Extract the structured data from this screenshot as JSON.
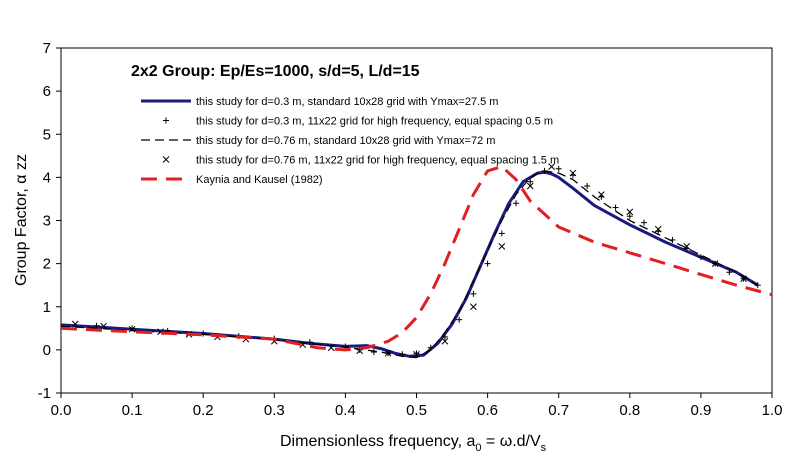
{
  "chart_data": {
    "type": "line",
    "title": "2x2 Group: Ep/Es=1000, s/d=5, L/d=15",
    "xlabel": {
      "main": "Dimensionless frequency, a",
      "sub": "0",
      "rest": " =  ω.d/V",
      "sub2": "s"
    },
    "ylabel": "Group Factor, α zz",
    "xlim": [
      0,
      1
    ],
    "ylim": [
      -1,
      7
    ],
    "xticks": [
      "0.0",
      "0.1",
      "0.2",
      "0.3",
      "0.4",
      "0.5",
      "0.6",
      "0.7",
      "0.8",
      "0.9",
      "1.0"
    ],
    "yticks": [
      "-1",
      "0",
      "1",
      "2",
      "3",
      "4",
      "5",
      "6",
      "7"
    ],
    "grid": false,
    "legend_position": "top-left",
    "series": [
      {
        "name": "this study for d=0.3 m, standard 10x28 grid with Ymax=27.5 m",
        "style": "solid-thick",
        "color": "#1a1a80",
        "x": [
          0.0,
          0.05,
          0.1,
          0.2,
          0.3,
          0.35,
          0.4,
          0.43,
          0.45,
          0.47,
          0.49,
          0.51,
          0.53,
          0.55,
          0.57,
          0.59,
          0.61,
          0.63,
          0.65,
          0.67,
          0.68,
          0.69,
          0.7,
          0.72,
          0.75,
          0.8,
          0.85,
          0.9,
          0.95,
          0.98
        ],
        "y": [
          0.58,
          0.53,
          0.48,
          0.38,
          0.25,
          0.15,
          0.08,
          0.1,
          0.03,
          -0.08,
          -0.15,
          -0.12,
          0.15,
          0.6,
          1.2,
          1.95,
          2.7,
          3.4,
          3.9,
          4.1,
          4.12,
          4.08,
          4.0,
          3.75,
          3.35,
          2.9,
          2.5,
          2.15,
          1.8,
          1.5
        ]
      },
      {
        "name": "this study for d=0.3 m, 11x22 grid for high frequency, equal spacing 0.5 m",
        "style": "plus",
        "color": "#000000",
        "x": [
          0.05,
          0.1,
          0.15,
          0.2,
          0.25,
          0.3,
          0.35,
          0.4,
          0.42,
          0.44,
          0.46,
          0.48,
          0.5,
          0.52,
          0.54,
          0.56,
          0.58,
          0.6,
          0.62,
          0.64,
          0.66,
          0.68,
          0.7,
          0.72,
          0.74,
          0.76,
          0.78,
          0.8,
          0.82,
          0.84,
          0.86,
          0.88,
          0.9,
          0.92,
          0.94,
          0.96,
          0.98
        ],
        "y": [
          0.56,
          0.5,
          0.44,
          0.38,
          0.32,
          0.26,
          0.18,
          0.08,
          0.0,
          -0.05,
          -0.08,
          -0.1,
          -0.08,
          0.05,
          0.3,
          0.7,
          1.3,
          2.0,
          2.7,
          3.4,
          3.9,
          4.15,
          4.2,
          4.05,
          3.8,
          3.55,
          3.3,
          3.1,
          2.95,
          2.75,
          2.55,
          2.35,
          2.15,
          2.0,
          1.8,
          1.65,
          1.5
        ]
      },
      {
        "name": "this study for d=0.76 m, standard 10x28 grid with Ymax=72 m",
        "style": "dashed",
        "color": "#000000",
        "x": [
          0.0,
          0.05,
          0.1,
          0.2,
          0.3,
          0.35,
          0.4,
          0.45,
          0.48,
          0.5,
          0.52,
          0.54,
          0.56,
          0.58,
          0.6,
          0.62,
          0.64,
          0.66,
          0.68,
          0.7,
          0.72,
          0.75,
          0.8,
          0.85,
          0.9,
          0.95,
          0.98
        ],
        "y": [
          0.55,
          0.5,
          0.45,
          0.36,
          0.24,
          0.15,
          0.06,
          -0.05,
          -0.15,
          -0.18,
          0.0,
          0.4,
          0.9,
          1.6,
          2.3,
          3.0,
          3.6,
          4.0,
          4.15,
          4.1,
          3.95,
          3.55,
          3.0,
          2.6,
          2.2,
          1.8,
          1.5
        ]
      },
      {
        "name": "this study for d=0.76 m, 11x22 grid for high frequency, equal spacing 1.5 m",
        "style": "cross",
        "color": "#000000",
        "x": [
          0.02,
          0.06,
          0.1,
          0.14,
          0.18,
          0.22,
          0.26,
          0.3,
          0.34,
          0.38,
          0.42,
          0.46,
          0.5,
          0.54,
          0.58,
          0.62,
          0.66,
          0.69,
          0.72,
          0.76,
          0.8,
          0.84,
          0.88,
          0.92,
          0.96
        ],
        "y": [
          0.6,
          0.55,
          0.48,
          0.42,
          0.36,
          0.3,
          0.25,
          0.2,
          0.12,
          0.05,
          -0.02,
          -0.08,
          -0.1,
          0.2,
          1.0,
          2.4,
          3.8,
          4.25,
          4.1,
          3.6,
          3.2,
          2.8,
          2.4,
          2.0,
          1.65
        ]
      },
      {
        "name": "Kaynia and Kausel (1982)",
        "style": "dashed-thick",
        "color": "#e02020",
        "x": [
          0.0,
          0.1,
          0.2,
          0.3,
          0.36,
          0.4,
          0.43,
          0.46,
          0.48,
          0.5,
          0.52,
          0.54,
          0.56,
          0.58,
          0.6,
          0.62,
          0.64,
          0.66,
          0.7,
          0.75,
          0.8,
          0.85,
          0.9,
          0.95,
          1.0
        ],
        "y": [
          0.5,
          0.42,
          0.35,
          0.25,
          0.05,
          0.0,
          0.05,
          0.2,
          0.4,
          0.75,
          1.3,
          2.0,
          2.8,
          3.6,
          4.15,
          4.25,
          3.95,
          3.45,
          2.85,
          2.5,
          2.25,
          2.0,
          1.75,
          1.5,
          1.28
        ]
      }
    ]
  }
}
